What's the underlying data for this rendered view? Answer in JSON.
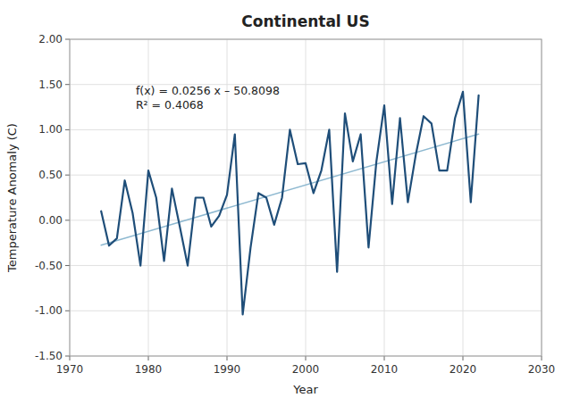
{
  "chart_data": {
    "type": "line",
    "title": "Continental US",
    "x_label": "Year",
    "y_label": "Temperature Anomaly (C)",
    "xlim": [
      1970,
      2030
    ],
    "ylim": [
      -1.5,
      2.0
    ],
    "xticks": [
      1970,
      1980,
      1990,
      2000,
      2010,
      2020,
      2030
    ],
    "yticks": [
      {
        "value": -1.5,
        "label": "-1.50"
      },
      {
        "value": -1.0,
        "label": "-1.00"
      },
      {
        "value": -0.5,
        "label": "-0.50"
      },
      {
        "value": 0.0,
        "label": "0.00"
      },
      {
        "value": 0.5,
        "label": "0.50"
      },
      {
        "value": 1.0,
        "label": "1.00"
      },
      {
        "value": 1.5,
        "label": "1.50"
      },
      {
        "value": 2.0,
        "label": "2.00"
      }
    ],
    "grid": true,
    "annotation": [
      "f(x) = 0.0256 x – 50.8098",
      "R² = 0.4068"
    ],
    "series": [
      {
        "color": "#8db8d0",
        "x": [
          1974,
          2022
        ],
        "values": [
          -0.2754,
          0.9534
        ]
      },
      {
        "color": "#1f4e79",
        "x": [
          1974,
          1975,
          1976,
          1977,
          1978,
          1979,
          1980,
          1981,
          1982,
          1983,
          1984,
          1985,
          1986,
          1987,
          1988,
          1989,
          1990,
          1991,
          1992,
          1993,
          1994,
          1995,
          1996,
          1997,
          1998,
          1999,
          2000,
          2001,
          2002,
          2003,
          2004,
          2005,
          2006,
          2007,
          2008,
          2009,
          2010,
          2011,
          2012,
          2013,
          2014,
          2015,
          2016,
          2017,
          2018,
          2019,
          2020,
          2021,
          2022
        ],
        "values": [
          0.1,
          -0.28,
          -0.2,
          0.44,
          0.08,
          -0.5,
          0.55,
          0.25,
          -0.45,
          0.35,
          -0.07,
          -0.5,
          0.25,
          0.25,
          -0.07,
          0.05,
          0.28,
          0.95,
          -1.04,
          -0.3,
          0.3,
          0.25,
          -0.05,
          0.25,
          1.0,
          0.62,
          0.63,
          0.3,
          0.55,
          1.0,
          -0.57,
          1.18,
          0.65,
          0.95,
          -0.3,
          0.65,
          1.27,
          0.18,
          1.13,
          0.2,
          0.72,
          1.15,
          1.07,
          0.55,
          0.55,
          1.13,
          1.42,
          0.2,
          1.38
        ]
      }
    ]
  }
}
